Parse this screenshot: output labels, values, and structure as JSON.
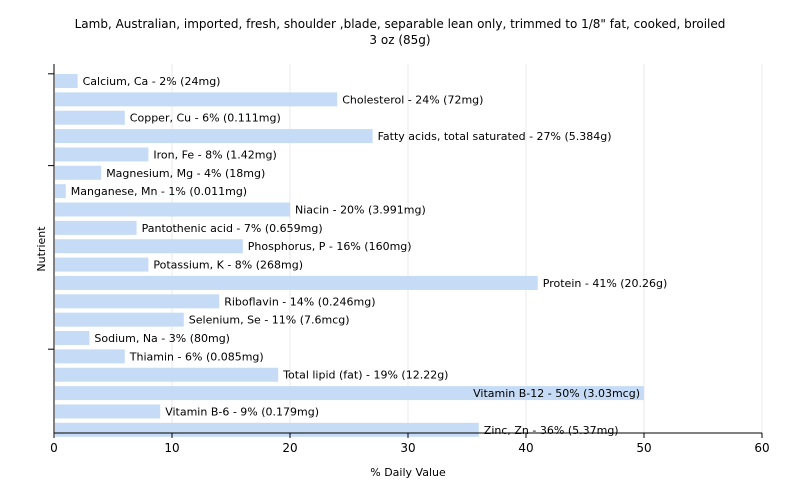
{
  "chart_data": {
    "type": "bar",
    "orientation": "horizontal",
    "title": "Lamb, Australian, imported, fresh, shoulder ,blade, separable lean only, trimmed to 1/8\" fat, cooked, broiled",
    "subtitle": "3 oz (85g)",
    "xlabel": "% Daily Value",
    "ylabel": "Nutrient",
    "xlim": [
      0,
      60
    ],
    "xticks": [
      0,
      10,
      20,
      30,
      40,
      50,
      60
    ],
    "grid": true,
    "bar_color": "#c6dcf6",
    "grid_color": "#e8e8e8",
    "axis_color": "#000000",
    "categories": [
      "Calcium, Ca",
      "Cholesterol",
      "Copper, Cu",
      "Fatty acids, total saturated",
      "Iron, Fe",
      "Magnesium, Mg",
      "Manganese, Mn",
      "Niacin",
      "Pantothenic acid",
      "Phosphorus, P",
      "Potassium, K",
      "Protein",
      "Riboflavin",
      "Selenium, Se",
      "Sodium, Na",
      "Thiamin",
      "Total lipid (fat)",
      "Vitamin B-12",
      "Vitamin B-6",
      "Zinc, Zn"
    ],
    "values": [
      2,
      24,
      6,
      27,
      8,
      4,
      1,
      20,
      7,
      16,
      8,
      41,
      14,
      11,
      3,
      6,
      19,
      50,
      9,
      36
    ],
    "labels": [
      "Calcium, Ca - 2% (24mg)",
      "Cholesterol - 24% (72mg)",
      "Copper, Cu - 6% (0.111mg)",
      "Fatty acids, total saturated - 27% (5.384g)",
      "Iron, Fe - 8% (1.42mg)",
      "Magnesium, Mg - 4% (18mg)",
      "Manganese, Mn - 1% (0.011mg)",
      "Niacin - 20% (3.991mg)",
      "Pantothenic acid - 7% (0.659mg)",
      "Phosphorus, P - 16% (160mg)",
      "Potassium, K - 8% (268mg)",
      "Protein - 41% (20.26g)",
      "Riboflavin - 14% (0.246mg)",
      "Selenium, Se - 11% (7.6mcg)",
      "Sodium, Na - 3% (80mg)",
      "Thiamin - 6% (0.085mg)",
      "Total lipid (fat) - 19% (12.22g)",
      "Vitamin B-12 - 50% (3.03mcg)",
      "Vitamin B-6 - 9% (0.179mg)",
      "Zinc, Zn - 36% (5.37mg)"
    ]
  }
}
